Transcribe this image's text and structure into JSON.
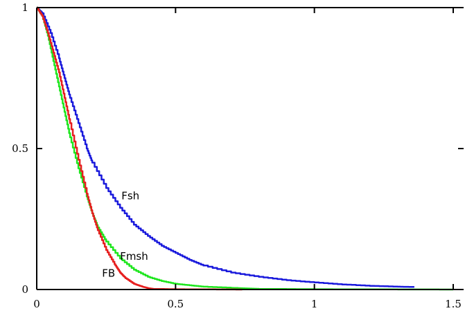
{
  "chart_data": {
    "type": "line",
    "title": "",
    "xlabel": "",
    "ylabel": "",
    "xlim": [
      0,
      1.5
    ],
    "ylim": [
      0,
      1
    ],
    "grid": false,
    "x_ticks": [
      {
        "value": 0,
        "label": "0"
      },
      {
        "value": 0.5,
        "label": "0.5"
      },
      {
        "value": 1,
        "label": "1"
      },
      {
        "value": 1.5,
        "label": "1.5"
      }
    ],
    "y_ticks": [
      {
        "value": 0,
        "label": "0"
      },
      {
        "value": 0.5,
        "label": "0.5"
      },
      {
        "value": 1,
        "label": "1"
      }
    ],
    "series": [
      {
        "name": "Fsh",
        "color": "#1a1adc",
        "label_at": [
          0.305,
          0.32
        ],
        "x": [
          0,
          0.02,
          0.05,
          0.08,
          0.1,
          0.12,
          0.15,
          0.18,
          0.2,
          0.25,
          0.3,
          0.35,
          0.4,
          0.45,
          0.5,
          0.55,
          0.6,
          0.7,
          0.8,
          0.9,
          1.0,
          1.1,
          1.2,
          1.3,
          1.36
        ],
        "values": [
          1,
          0.98,
          0.91,
          0.82,
          0.75,
          0.68,
          0.59,
          0.5,
          0.45,
          0.36,
          0.29,
          0.23,
          0.19,
          0.155,
          0.13,
          0.105,
          0.085,
          0.06,
          0.045,
          0.033,
          0.025,
          0.018,
          0.013,
          0.01,
          0.009
        ]
      },
      {
        "name": "Fmsh",
        "color": "#1ee61e",
        "label_at": [
          0.3,
          0.105
        ],
        "x": [
          0,
          0.02,
          0.04,
          0.06,
          0.08,
          0.1,
          0.12,
          0.15,
          0.18,
          0.2,
          0.22,
          0.25,
          0.3,
          0.35,
          0.4,
          0.45,
          0.5,
          0.55,
          0.6,
          0.7,
          0.75,
          0.8,
          1.0,
          1.2,
          1.5
        ],
        "values": [
          1,
          0.97,
          0.9,
          0.81,
          0.72,
          0.63,
          0.54,
          0.43,
          0.33,
          0.27,
          0.22,
          0.17,
          0.11,
          0.07,
          0.045,
          0.03,
          0.02,
          0.015,
          0.01,
          0.006,
          0.004,
          0.002,
          0.001,
          0.0005,
          0
        ]
      },
      {
        "name": "FB",
        "color": "#e61e1e",
        "label_at": [
          0.235,
          0.045
        ],
        "x": [
          0,
          0.02,
          0.04,
          0.06,
          0.08,
          0.1,
          0.12,
          0.15,
          0.18,
          0.2,
          0.22,
          0.25,
          0.28,
          0.3,
          0.32,
          0.35,
          0.38,
          0.4,
          0.42,
          0.5,
          0.6,
          0.74
        ],
        "values": [
          1,
          0.97,
          0.91,
          0.84,
          0.77,
          0.68,
          0.59,
          0.46,
          0.34,
          0.27,
          0.21,
          0.14,
          0.09,
          0.06,
          0.04,
          0.02,
          0.01,
          0.005,
          0.002,
          0.001,
          0.0005,
          0
        ]
      }
    ]
  }
}
